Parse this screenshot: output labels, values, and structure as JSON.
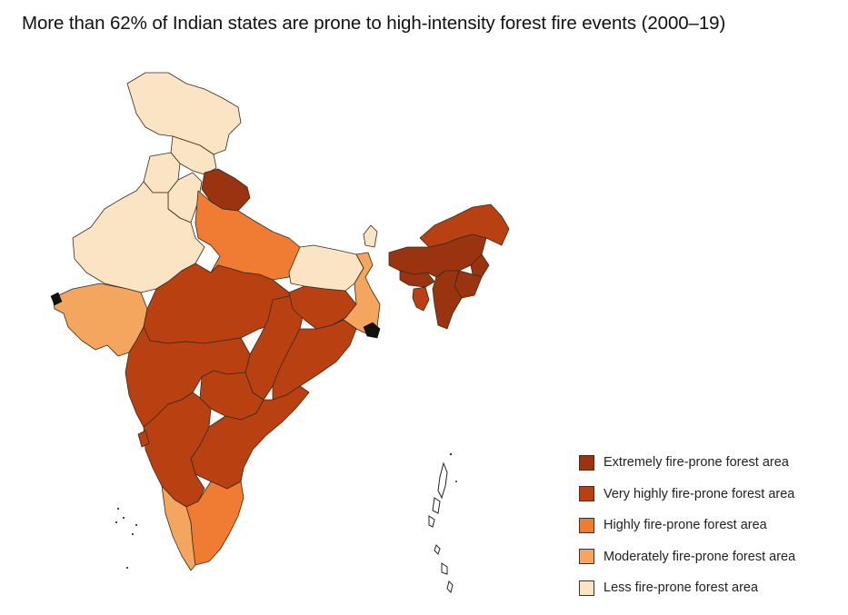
{
  "title": "More than 62% of Indian states are prone to high-intensity forest fire events (2000–19)",
  "colors": {
    "extremely": "#9a3410",
    "very_high": "#b84011",
    "high": "#ef7c32",
    "moderate": "#f4a55e",
    "less": "#fbe4c3"
  },
  "legend": [
    {
      "label": "Extremely fire-prone forest area",
      "color": "#9a3410"
    },
    {
      "label": "Very highly fire-prone forest area",
      "color": "#b84011"
    },
    {
      "label": "Highly fire-prone forest area",
      "color": "#ef7c32"
    },
    {
      "label": "Moderately fire-prone forest area",
      "color": "#f4a55e"
    },
    {
      "label": "Less fire-prone forest area",
      "color": "#fbe4c3"
    }
  ],
  "regions": [
    {
      "name": "jammu-kashmir",
      "category": "less"
    },
    {
      "name": "himachal-pradesh",
      "category": "less"
    },
    {
      "name": "punjab",
      "category": "less"
    },
    {
      "name": "haryana",
      "category": "less"
    },
    {
      "name": "rajasthan",
      "category": "less"
    },
    {
      "name": "bihar",
      "category": "less"
    },
    {
      "name": "uttarakhand",
      "category": "extremely"
    },
    {
      "name": "uttar-pradesh",
      "category": "high"
    },
    {
      "name": "gujarat",
      "category": "moderate"
    },
    {
      "name": "madhya-pradesh",
      "category": "very_high"
    },
    {
      "name": "maharashtra",
      "category": "very_high"
    },
    {
      "name": "chhattisgarh",
      "category": "very_high"
    },
    {
      "name": "odisha",
      "category": "very_high"
    },
    {
      "name": "telangana",
      "category": "very_high"
    },
    {
      "name": "andhra-pradesh",
      "category": "very_high"
    },
    {
      "name": "jharkhand",
      "category": "very_high"
    },
    {
      "name": "west-bengal",
      "category": "moderate"
    },
    {
      "name": "karnataka",
      "category": "very_high"
    },
    {
      "name": "goa",
      "category": "very_high"
    },
    {
      "name": "kerala",
      "category": "moderate"
    },
    {
      "name": "tamil-nadu",
      "category": "high"
    },
    {
      "name": "sikkim",
      "category": "less"
    },
    {
      "name": "arunachal-pradesh",
      "category": "very_high"
    },
    {
      "name": "assam",
      "category": "extremely"
    },
    {
      "name": "meghalaya",
      "category": "extremely"
    },
    {
      "name": "nagaland",
      "category": "extremely"
    },
    {
      "name": "manipur",
      "category": "extremely"
    },
    {
      "name": "mizoram",
      "category": "extremely"
    },
    {
      "name": "tripura",
      "category": "very_high"
    }
  ]
}
